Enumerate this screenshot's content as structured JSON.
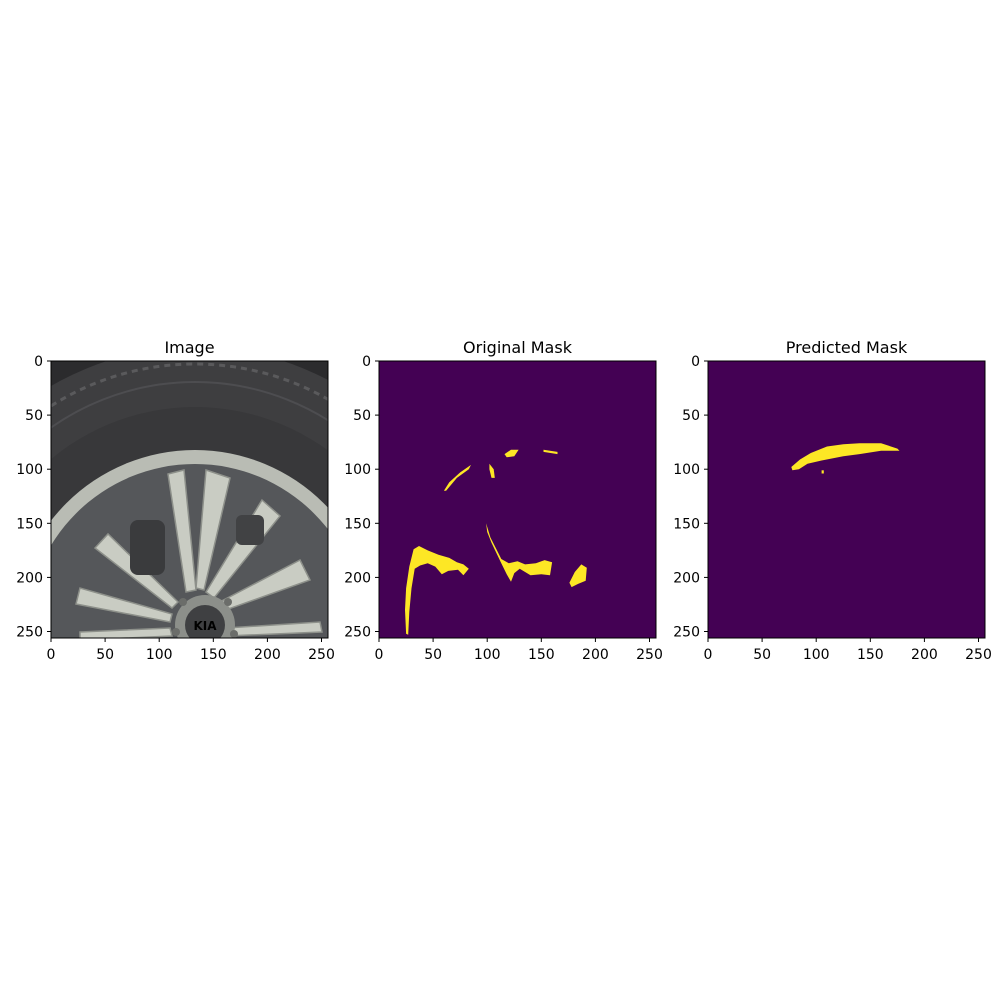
{
  "chart_data": [
    {
      "type": "image",
      "title": "Image",
      "xlim": [
        0,
        256
      ],
      "ylim": [
        256,
        0
      ],
      "xticks": [
        0,
        50,
        100,
        150,
        200,
        250
      ],
      "yticks": [
        0,
        50,
        100,
        150,
        200,
        250
      ],
      "content": "photo of a car wheel with multi-spoke alloy rim and tire"
    },
    {
      "type": "heatmap",
      "title": "Original Mask",
      "xlim": [
        0,
        256
      ],
      "ylim": [
        256,
        0
      ],
      "xticks": [
        0,
        50,
        100,
        150,
        200,
        250
      ],
      "yticks": [
        0,
        50,
        100,
        150,
        200,
        250
      ],
      "colors": {
        "background": "#440154",
        "foreground": "#fde725"
      },
      "regions": [
        [
          [
            60,
            120
          ],
          [
            65,
            112
          ],
          [
            75,
            103
          ],
          [
            85,
            96
          ],
          [
            83,
            100
          ],
          [
            72,
            108
          ],
          [
            62,
            120
          ]
        ],
        [
          [
            102,
            95
          ],
          [
            106,
            100
          ],
          [
            107,
            108
          ],
          [
            104,
            108
          ],
          [
            102,
            100
          ]
        ],
        [
          [
            116,
            86
          ],
          [
            122,
            82
          ],
          [
            129,
            82
          ],
          [
            125,
            88
          ],
          [
            118,
            89
          ]
        ],
        [
          [
            152,
            82
          ],
          [
            165,
            84
          ],
          [
            165,
            86
          ],
          [
            152,
            84
          ]
        ],
        [
          [
            99,
            150
          ],
          [
            103,
            163
          ],
          [
            113,
            183
          ],
          [
            120,
            187
          ],
          [
            128,
            185
          ],
          [
            135,
            188
          ],
          [
            145,
            187
          ],
          [
            153,
            184
          ],
          [
            160,
            186
          ],
          [
            158,
            198
          ],
          [
            150,
            197
          ],
          [
            140,
            198
          ],
          [
            130,
            192
          ],
          [
            125,
            196
          ],
          [
            122,
            204
          ],
          [
            118,
            197
          ],
          [
            113,
            187
          ],
          [
            104,
            168
          ],
          [
            100,
            158
          ]
        ],
        [
          [
            25,
            252
          ],
          [
            24,
            230
          ],
          [
            25,
            210
          ],
          [
            28,
            190
          ],
          [
            32,
            174
          ],
          [
            37,
            171
          ],
          [
            45,
            175
          ],
          [
            55,
            179
          ],
          [
            65,
            182
          ],
          [
            72,
            186
          ],
          [
            78,
            188
          ],
          [
            83,
            192
          ],
          [
            78,
            198
          ],
          [
            73,
            193
          ],
          [
            64,
            194
          ],
          [
            58,
            197
          ],
          [
            52,
            190
          ],
          [
            45,
            187
          ],
          [
            38,
            189
          ],
          [
            33,
            192
          ],
          [
            30,
            210
          ],
          [
            28,
            232
          ],
          [
            27,
            253
          ]
        ],
        [
          [
            176,
            205
          ],
          [
            181,
            195
          ],
          [
            187,
            188
          ],
          [
            192,
            191
          ],
          [
            191,
            203
          ],
          [
            184,
            206
          ],
          [
            178,
            209
          ]
        ]
      ]
    },
    {
      "type": "heatmap",
      "title": "Predicted Mask",
      "xlim": [
        0,
        256
      ],
      "ylim": [
        256,
        0
      ],
      "xticks": [
        0,
        50,
        100,
        150,
        200,
        250
      ],
      "yticks": [
        0,
        50,
        100,
        150,
        200,
        250
      ],
      "colors": {
        "background": "#440154",
        "foreground": "#fde725"
      },
      "regions": [
        [
          [
            77,
            98
          ],
          [
            85,
            91
          ],
          [
            95,
            85
          ],
          [
            110,
            79
          ],
          [
            125,
            77
          ],
          [
            140,
            76
          ],
          [
            160,
            76
          ],
          [
            175,
            81
          ],
          [
            177,
            83
          ],
          [
            160,
            83
          ],
          [
            140,
            86
          ],
          [
            125,
            88
          ],
          [
            105,
            92
          ],
          [
            92,
            95
          ],
          [
            84,
            100
          ],
          [
            78,
            101
          ]
        ],
        [
          [
            105,
            101
          ],
          [
            107,
            101
          ],
          [
            107,
            104
          ],
          [
            105,
            104
          ]
        ]
      ]
    }
  ]
}
